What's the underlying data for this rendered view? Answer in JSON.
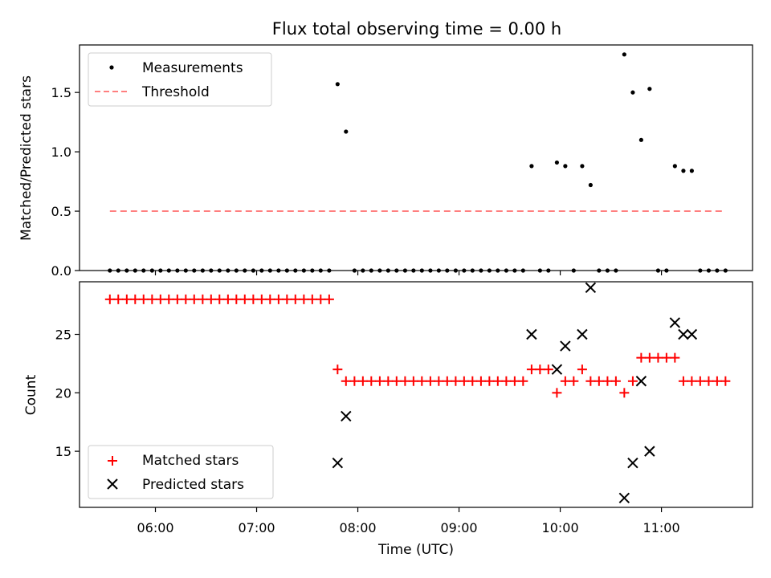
{
  "chart_data": {
    "title": "Flux total observing time = 0.00 h",
    "xlabel": "Time (UTC)",
    "x_ticks": [
      "06:00",
      "07:00",
      "08:00",
      "09:00",
      "10:00",
      "11:00"
    ],
    "x_tick_hours": [
      6,
      7,
      8,
      9,
      10,
      11
    ],
    "xlim_hours": [
      5.25,
      11.9
    ],
    "panels": [
      {
        "type": "scatter",
        "ylabel": "Matched/Predicted stars",
        "ylim": [
          0,
          1.9
        ],
        "y_ticks": [
          "0.0",
          "0.5",
          "1.0",
          "1.5"
        ],
        "y_tick_values": [
          0,
          0.5,
          1.0,
          1.5
        ],
        "legend": {
          "placement": "upper-left",
          "entries": [
            "Measurements",
            "Threshold"
          ]
        },
        "series": [
          {
            "name": "Measurements",
            "marker": "dot",
            "color": "#000000",
            "points": [
              [
                5.55,
                0
              ],
              [
                5.633,
                0
              ],
              [
                5.717,
                0
              ],
              [
                5.8,
                0
              ],
              [
                5.883,
                0
              ],
              [
                5.967,
                0
              ],
              [
                6.05,
                0
              ],
              [
                6.133,
                0
              ],
              [
                6.217,
                0
              ],
              [
                6.3,
                0
              ],
              [
                6.383,
                0
              ],
              [
                6.467,
                0
              ],
              [
                6.55,
                0
              ],
              [
                6.633,
                0
              ],
              [
                6.717,
                0
              ],
              [
                6.8,
                0
              ],
              [
                6.883,
                0
              ],
              [
                6.967,
                0
              ],
              [
                7.05,
                0
              ],
              [
                7.133,
                0
              ],
              [
                7.217,
                0
              ],
              [
                7.3,
                0
              ],
              [
                7.383,
                0
              ],
              [
                7.467,
                0
              ],
              [
                7.55,
                0
              ],
              [
                7.633,
                0
              ],
              [
                7.717,
                0
              ],
              [
                7.8,
                1.57
              ],
              [
                7.883,
                1.17
              ],
              [
                7.967,
                0
              ],
              [
                8.05,
                0
              ],
              [
                8.133,
                0
              ],
              [
                8.217,
                0
              ],
              [
                8.3,
                0
              ],
              [
                8.383,
                0
              ],
              [
                8.467,
                0
              ],
              [
                8.55,
                0
              ],
              [
                8.633,
                0
              ],
              [
                8.717,
                0
              ],
              [
                8.8,
                0
              ],
              [
                8.883,
                0
              ],
              [
                8.967,
                0
              ],
              [
                9.05,
                0
              ],
              [
                9.133,
                0
              ],
              [
                9.217,
                0
              ],
              [
                9.3,
                0
              ],
              [
                9.383,
                0
              ],
              [
                9.467,
                0
              ],
              [
                9.55,
                0
              ],
              [
                9.633,
                0
              ],
              [
                9.717,
                0.88
              ],
              [
                9.8,
                0
              ],
              [
                9.883,
                0
              ],
              [
                9.967,
                0.91
              ],
              [
                10.05,
                0.88
              ],
              [
                10.133,
                0
              ],
              [
                10.217,
                0.88
              ],
              [
                10.3,
                0.72
              ],
              [
                10.383,
                0
              ],
              [
                10.467,
                0
              ],
              [
                10.55,
                0
              ],
              [
                10.633,
                1.82
              ],
              [
                10.717,
                1.5
              ],
              [
                10.8,
                1.1
              ],
              [
                10.883,
                1.53
              ],
              [
                10.967,
                0
              ],
              [
                11.05,
                0
              ],
              [
                11.133,
                0.88
              ],
              [
                11.217,
                0.84
              ],
              [
                11.3,
                0.84
              ],
              [
                11.383,
                0
              ],
              [
                11.467,
                0
              ],
              [
                11.55,
                0
              ],
              [
                11.633,
                0
              ]
            ]
          },
          {
            "name": "Threshold",
            "style": "dashed",
            "color": "#ff7f7f",
            "line": [
              [
                5.55,
                0.5
              ],
              [
                11.6,
                0.5
              ]
            ]
          }
        ]
      },
      {
        "type": "scatter",
        "ylabel": "Count",
        "ylim": [
          10.2,
          29.5
        ],
        "y_ticks": [
          "15",
          "20",
          "25"
        ],
        "y_tick_values": [
          15,
          20,
          25
        ],
        "legend": {
          "placement": "lower-left",
          "entries": [
            "Matched stars",
            "Predicted stars"
          ]
        },
        "series": [
          {
            "name": "Matched stars",
            "marker": "plus",
            "color": "#ff0000",
            "points": [
              [
                5.55,
                28
              ],
              [
                5.633,
                28
              ],
              [
                5.717,
                28
              ],
              [
                5.8,
                28
              ],
              [
                5.883,
                28
              ],
              [
                5.967,
                28
              ],
              [
                6.05,
                28
              ],
              [
                6.133,
                28
              ],
              [
                6.217,
                28
              ],
              [
                6.3,
                28
              ],
              [
                6.383,
                28
              ],
              [
                6.467,
                28
              ],
              [
                6.55,
                28
              ],
              [
                6.633,
                28
              ],
              [
                6.717,
                28
              ],
              [
                6.8,
                28
              ],
              [
                6.883,
                28
              ],
              [
                6.967,
                28
              ],
              [
                7.05,
                28
              ],
              [
                7.133,
                28
              ],
              [
                7.217,
                28
              ],
              [
                7.3,
                28
              ],
              [
                7.383,
                28
              ],
              [
                7.467,
                28
              ],
              [
                7.55,
                28
              ],
              [
                7.633,
                28
              ],
              [
                7.717,
                28
              ],
              [
                7.8,
                22
              ],
              [
                7.883,
                21
              ],
              [
                7.967,
                21
              ],
              [
                8.05,
                21
              ],
              [
                8.133,
                21
              ],
              [
                8.217,
                21
              ],
              [
                8.3,
                21
              ],
              [
                8.383,
                21
              ],
              [
                8.467,
                21
              ],
              [
                8.55,
                21
              ],
              [
                8.633,
                21
              ],
              [
                8.717,
                21
              ],
              [
                8.8,
                21
              ],
              [
                8.883,
                21
              ],
              [
                8.967,
                21
              ],
              [
                9.05,
                21
              ],
              [
                9.133,
                21
              ],
              [
                9.217,
                21
              ],
              [
                9.3,
                21
              ],
              [
                9.383,
                21
              ],
              [
                9.467,
                21
              ],
              [
                9.55,
                21
              ],
              [
                9.633,
                21
              ],
              [
                9.717,
                22
              ],
              [
                9.8,
                22
              ],
              [
                9.883,
                22
              ],
              [
                9.967,
                20
              ],
              [
                10.05,
                21
              ],
              [
                10.133,
                21
              ],
              [
                10.217,
                22
              ],
              [
                10.3,
                21
              ],
              [
                10.383,
                21
              ],
              [
                10.467,
                21
              ],
              [
                10.55,
                21
              ],
              [
                10.633,
                20
              ],
              [
                10.717,
                21
              ],
              [
                10.8,
                23
              ],
              [
                10.883,
                23
              ],
              [
                10.967,
                23
              ],
              [
                11.05,
                23
              ],
              [
                11.133,
                23
              ],
              [
                11.217,
                21
              ],
              [
                11.3,
                21
              ],
              [
                11.383,
                21
              ],
              [
                11.467,
                21
              ],
              [
                11.55,
                21
              ],
              [
                11.633,
                21
              ]
            ]
          },
          {
            "name": "Predicted stars",
            "marker": "x",
            "color": "#000000",
            "points": [
              [
                7.8,
                14
              ],
              [
                7.883,
                18
              ],
              [
                9.717,
                25
              ],
              [
                9.967,
                22
              ],
              [
                10.05,
                24
              ],
              [
                10.217,
                25
              ],
              [
                10.3,
                29
              ],
              [
                10.633,
                11
              ],
              [
                10.717,
                14
              ],
              [
                10.8,
                21
              ],
              [
                10.883,
                15
              ],
              [
                11.133,
                26
              ],
              [
                11.217,
                25
              ],
              [
                11.3,
                25
              ]
            ]
          }
        ]
      }
    ]
  }
}
